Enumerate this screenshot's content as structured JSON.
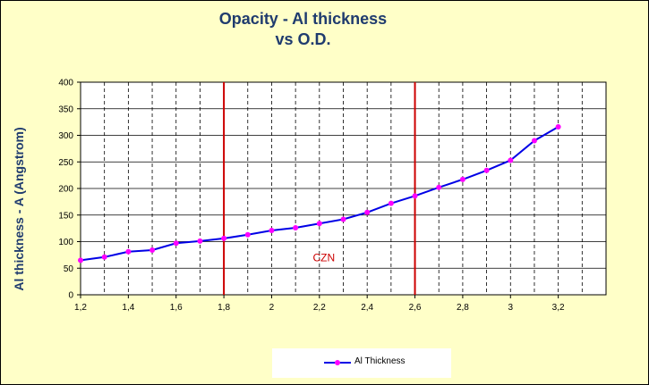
{
  "chart_data": {
    "type": "line",
    "title_line1": "Opacity - Al thickness",
    "title_line2": "vs O.D.",
    "xlabel": "",
    "ylabel": "Al thickness - A (Angstrom)",
    "xlim": [
      1.2,
      3.4
    ],
    "ylim": [
      0,
      400
    ],
    "x_ticks": [
      "1,2",
      "1,4",
      "1,6",
      "1,8",
      "2",
      "2,2",
      "2,4",
      "2,6",
      "2,8",
      "3",
      "3,2"
    ],
    "y_ticks": [
      "0",
      "50",
      "100",
      "150",
      "200",
      "250",
      "300",
      "350",
      "400"
    ],
    "grid": true,
    "legend_position": "bottom",
    "series": [
      {
        "name": "Al Thickness",
        "line_color": "#0000e6",
        "marker_color": "#ff00ff",
        "x": [
          1.2,
          1.3,
          1.4,
          1.5,
          1.6,
          1.7,
          1.8,
          1.9,
          2.0,
          2.1,
          2.2,
          2.3,
          2.4,
          2.5,
          2.6,
          2.7,
          2.8,
          2.9,
          3.0,
          3.1,
          3.2
        ],
        "values": [
          65,
          71,
          81,
          84,
          97,
          101,
          106,
          113,
          121,
          126,
          134,
          142,
          155,
          172,
          186,
          202,
          217,
          234,
          253,
          290,
          316
        ]
      }
    ],
    "reference_lines": [
      {
        "x": 1.8,
        "color": "#cc0000"
      },
      {
        "x": 2.6,
        "color": "#cc0000"
      }
    ],
    "annotation": {
      "text": "CZN",
      "x": 2.2,
      "y": 70,
      "color": "#cc0000"
    }
  }
}
